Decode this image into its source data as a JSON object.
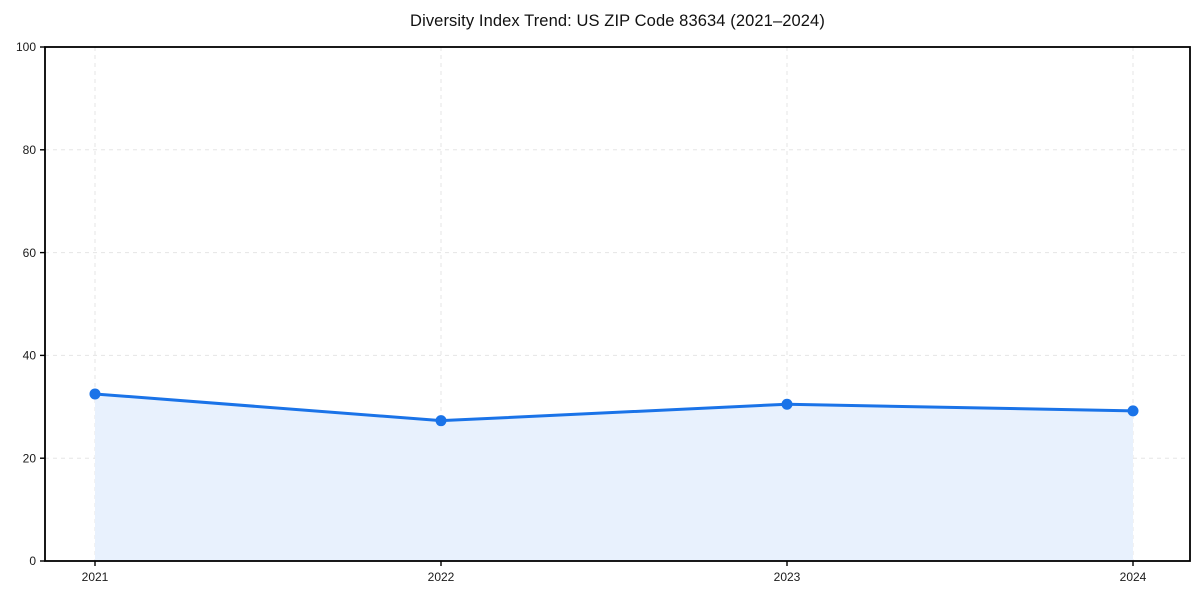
{
  "chart_data": {
    "type": "area",
    "title": "Diversity Index Trend: US ZIP Code 83634 (2021–2024)",
    "categories": [
      "2021",
      "2022",
      "2023",
      "2024"
    ],
    "series": [
      {
        "name": "Diversity Index",
        "values": [
          32.5,
          27.3,
          30.5,
          29.2
        ]
      }
    ],
    "xlabel": "",
    "ylabel": "",
    "ylim": [
      0,
      100
    ],
    "yticks": [
      0,
      20,
      40,
      60,
      80,
      100
    ],
    "grid": true,
    "grid_style": "dashed",
    "legend_position": "none",
    "colors": {
      "line": "#1a73e8",
      "marker": "#1a73e8",
      "fill": "#e8f1fd",
      "grid": "#e5e5e5",
      "axis": "#000000",
      "tick_text": "#1a1a1a",
      "background": "#ffffff"
    }
  }
}
